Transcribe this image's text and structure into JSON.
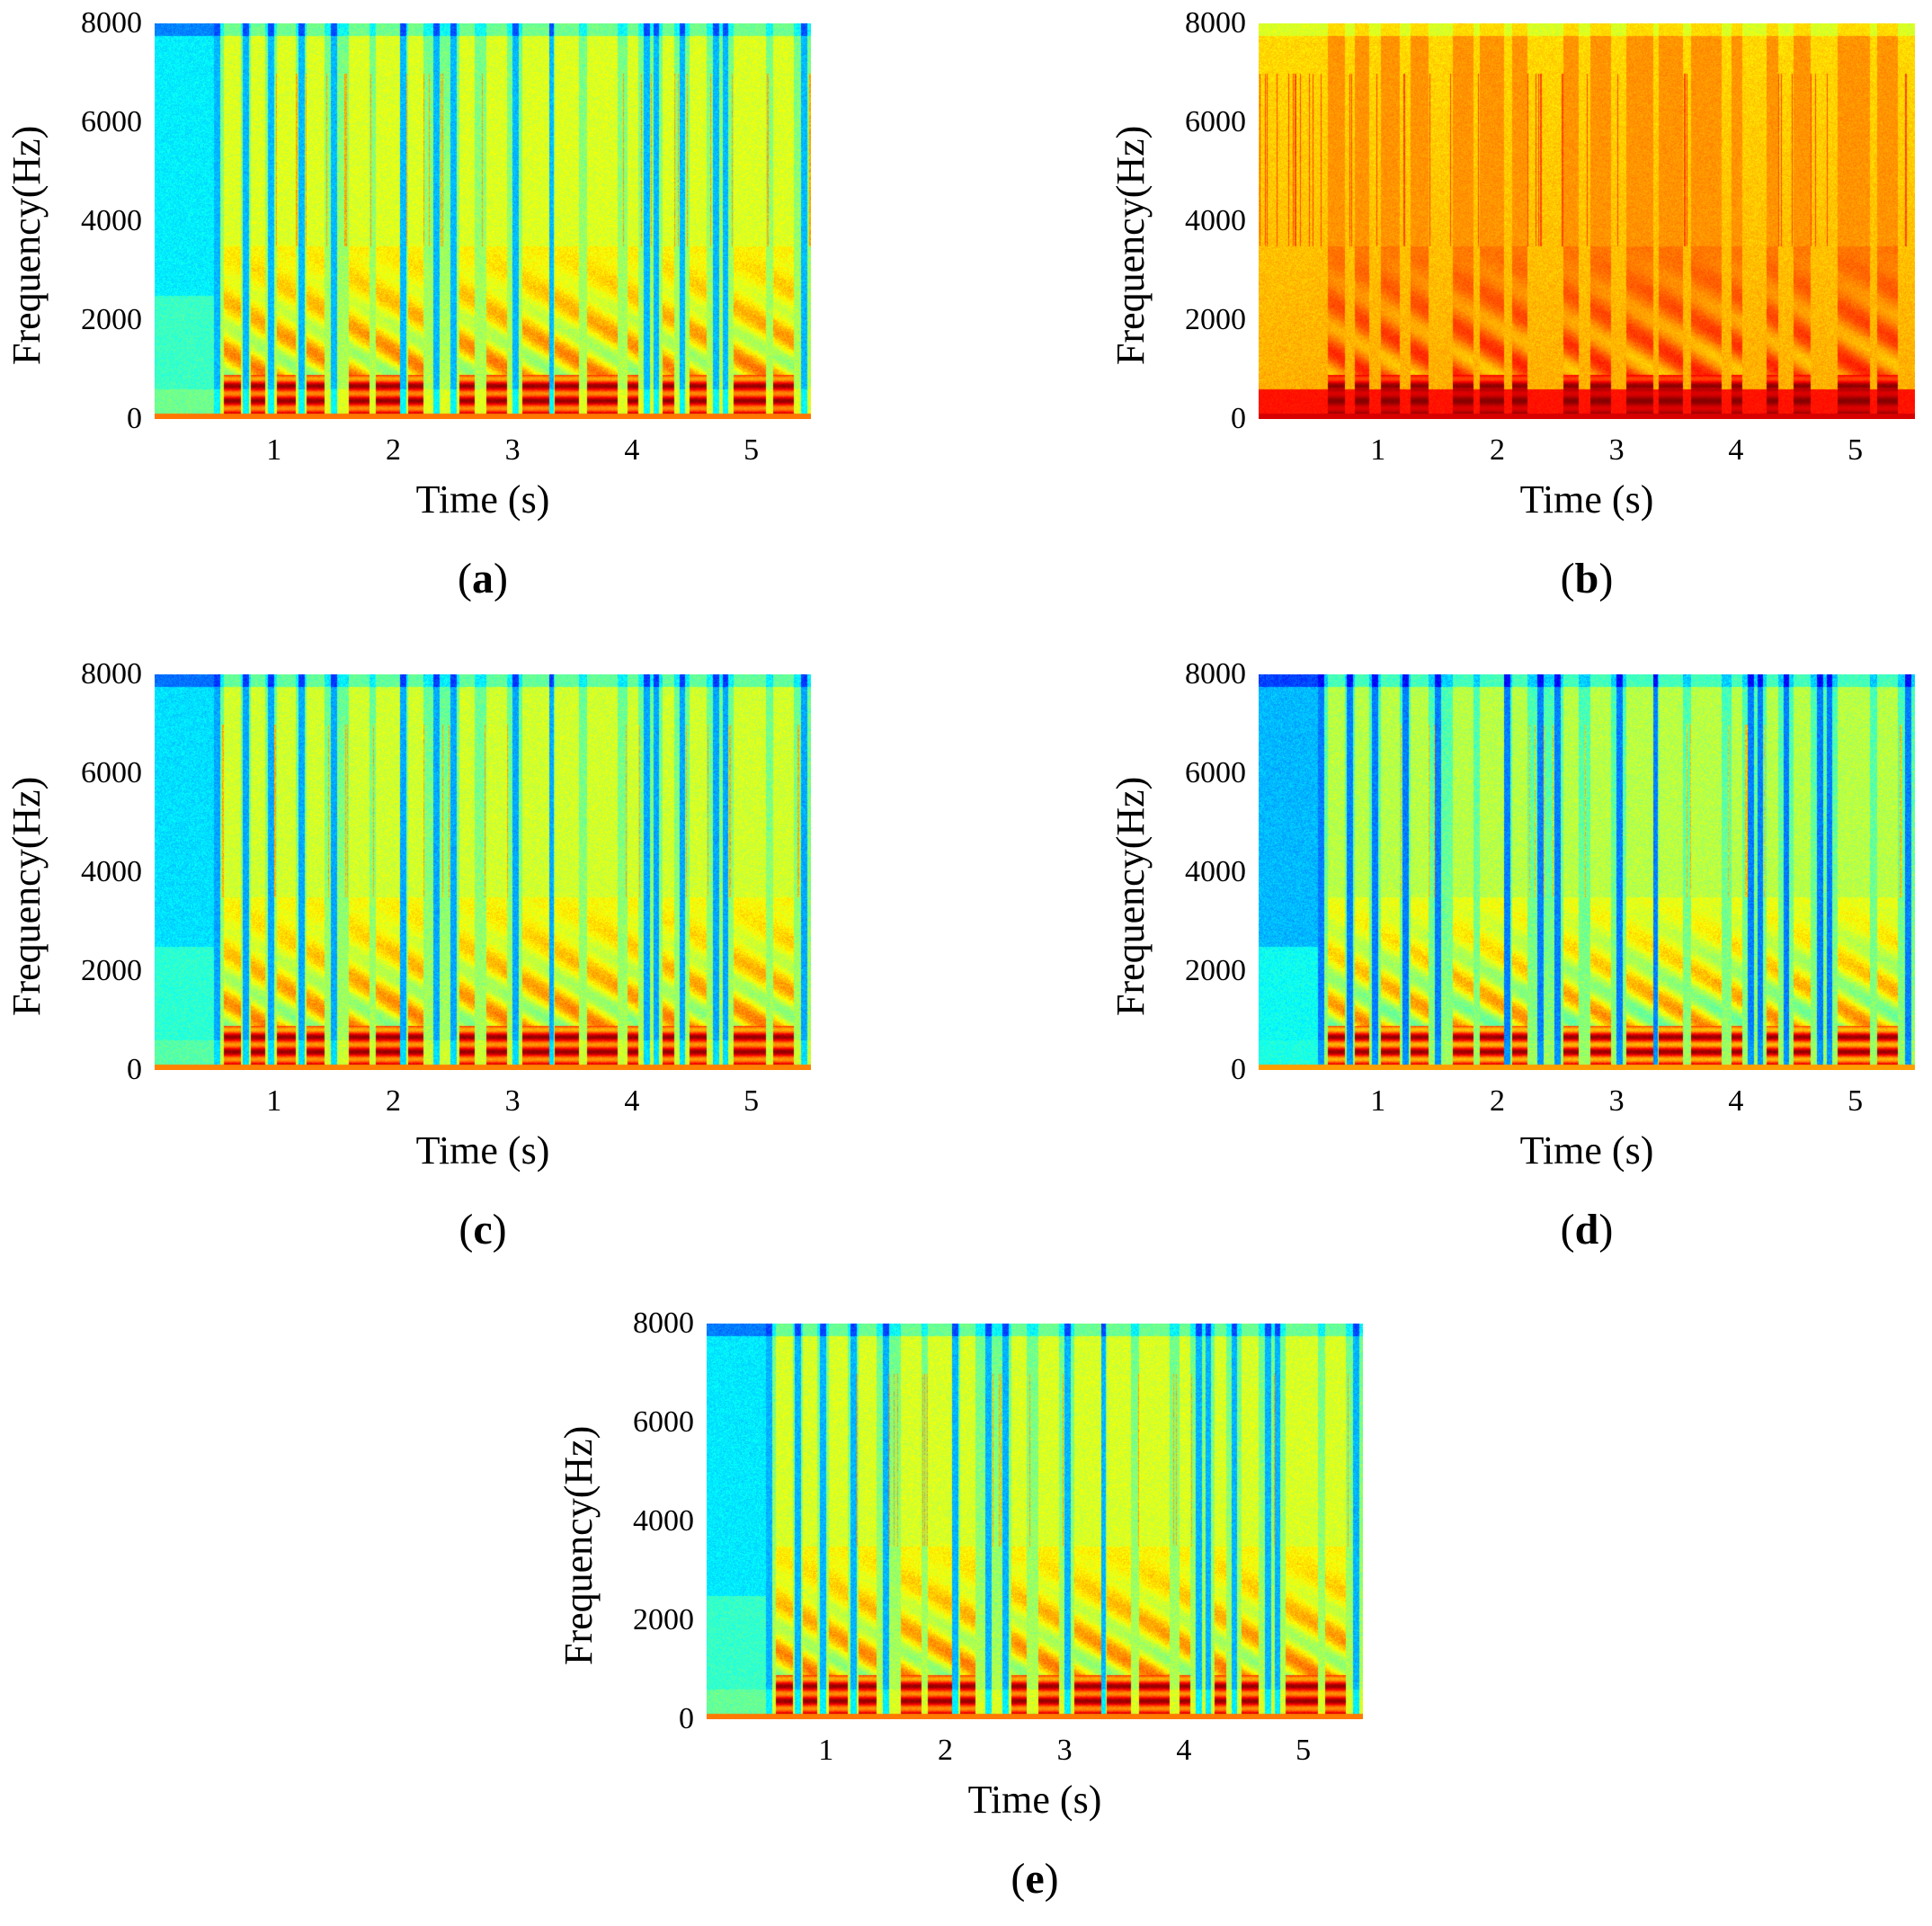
{
  "chart_data": [
    {
      "type": "heatmap",
      "id": "a",
      "caption_open": "(",
      "caption_letter": "a",
      "caption_close": ")",
      "xlabel": "Time (s)",
      "ylabel": "Frequency(Hz)",
      "xticks": [
        "1",
        "2",
        "3",
        "4",
        "5"
      ],
      "yticks": [
        "0",
        "2000",
        "4000",
        "6000",
        "8000"
      ],
      "xlim": [
        0.0,
        5.5
      ],
      "ylim": [
        0,
        8000
      ],
      "noise": 0.15,
      "gaps": true,
      "silence_start": true
    },
    {
      "type": "heatmap",
      "id": "b",
      "caption_open": "(",
      "caption_letter": "b",
      "caption_close": ")",
      "xlabel": "Time (s)",
      "ylabel": "Frequency(Hz)",
      "xticks": [
        "1",
        "2",
        "3",
        "4",
        "5"
      ],
      "yticks": [
        "0",
        "2000",
        "4000",
        "6000",
        "8000"
      ],
      "xlim": [
        0.0,
        5.5
      ],
      "ylim": [
        0,
        8000
      ],
      "noise": 0.55,
      "gaps": false,
      "silence_start": false
    },
    {
      "type": "heatmap",
      "id": "c",
      "caption_open": "(",
      "caption_letter": "c",
      "caption_close": ")",
      "xlabel": "Time (s)",
      "ylabel": "Frequency(Hz)",
      "xticks": [
        "1",
        "2",
        "3",
        "4",
        "5"
      ],
      "yticks": [
        "0",
        "2000",
        "4000",
        "6000",
        "8000"
      ],
      "xlim": [
        0.0,
        5.5
      ],
      "ylim": [
        0,
        8000
      ],
      "noise": 0.12,
      "gaps": true,
      "silence_start": true
    },
    {
      "type": "heatmap",
      "id": "d",
      "caption_open": "(",
      "caption_letter": "d",
      "caption_close": ")",
      "xlabel": "Time (s)",
      "ylabel": "Frequency(Hz)",
      "xticks": [
        "1",
        "2",
        "3",
        "4",
        "5"
      ],
      "yticks": [
        "0",
        "2000",
        "4000",
        "6000",
        "8000"
      ],
      "xlim": [
        0.0,
        5.5
      ],
      "ylim": [
        0,
        8000
      ],
      "noise": 0.05,
      "gaps": true,
      "silence_start": true
    },
    {
      "type": "heatmap",
      "id": "e",
      "caption_open": "(",
      "caption_letter": "e",
      "caption_close": ")",
      "xlabel": "Time (s)",
      "ylabel": "Frequency(Hz)",
      "xticks": [
        "1",
        "2",
        "3",
        "4",
        "5"
      ],
      "yticks": [
        "0",
        "2000",
        "4000",
        "6000",
        "8000"
      ],
      "xlim": [
        0.0,
        5.5
      ],
      "ylim": [
        0,
        8000
      ],
      "noise": 0.14,
      "gaps": true,
      "silence_start": true
    }
  ]
}
